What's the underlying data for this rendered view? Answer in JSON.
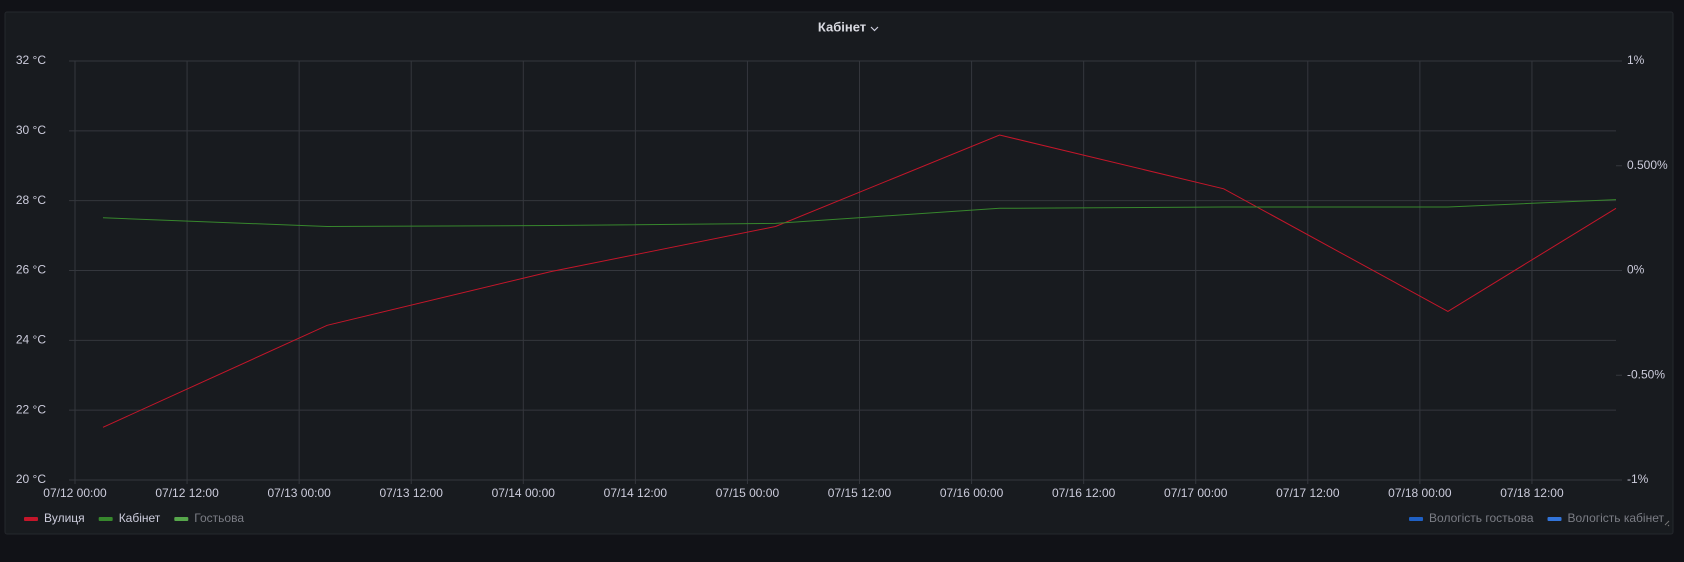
{
  "chart_data": {
    "type": "line",
    "title": "Кабінет",
    "x": [
      "07/12 03:00",
      "07/13 03:00",
      "07/14 03:00",
      "07/15 03:00",
      "07/16 03:00",
      "07/17 03:00",
      "07/18 03:00",
      "07/18 21:00"
    ],
    "xlim": [
      "07/12 00:00",
      "07/18 21:00"
    ],
    "xticks": [
      "07/12 00:00",
      "07/12 12:00",
      "07/13 00:00",
      "07/13 12:00",
      "07/14 00:00",
      "07/14 12:00",
      "07/15 00:00",
      "07/15 12:00",
      "07/16 00:00",
      "07/16 12:00",
      "07/17 00:00",
      "07/17 12:00",
      "07/18 00:00",
      "07/18 12:00"
    ],
    "ylim": [
      20,
      32
    ],
    "yticks": [
      {
        "value": 20,
        "label": "20 °C"
      },
      {
        "value": 22,
        "label": "22 °C"
      },
      {
        "value": 24,
        "label": "24 °C"
      },
      {
        "value": 26,
        "label": "26 °C"
      },
      {
        "value": 28,
        "label": "28 °C"
      },
      {
        "value": 30,
        "label": "30 °C"
      },
      {
        "value": 32,
        "label": "32 °C"
      }
    ],
    "y2lim": [
      -1,
      1
    ],
    "y2ticks": [
      {
        "value": -1,
        "label": "-1%"
      },
      {
        "value": -0.5,
        "label": "-0.50%"
      },
      {
        "value": 0,
        "label": "0%"
      },
      {
        "value": 0.5,
        "label": "0.500%"
      },
      {
        "value": 1,
        "label": "1%"
      }
    ],
    "grid": true,
    "series": [
      {
        "name": "Вулиця",
        "color": "#c4162a",
        "values": [
          21.51,
          24.43,
          25.97,
          27.26,
          29.88,
          28.34,
          24.83,
          27.78
        ]
      },
      {
        "name": "Кабінет",
        "color": "#37872d",
        "values": [
          27.51,
          27.26,
          27.29,
          27.35,
          27.78,
          27.82,
          27.82,
          28.03
        ]
      },
      {
        "name": "Гостьова",
        "color": "#56a64b",
        "values": [
          null,
          null,
          null,
          null,
          null,
          null,
          null,
          null
        ]
      },
      {
        "name": "Вологість гостьова",
        "color": "#1f60c4",
        "axis": "y2",
        "values": [
          null,
          null,
          null,
          null,
          null,
          null,
          null,
          null
        ]
      },
      {
        "name": "Вологість кабінет",
        "color": "#3274d9",
        "axis": "y2",
        "values": [
          null,
          null,
          null,
          null,
          null,
          null,
          null,
          null
        ]
      }
    ]
  }
}
